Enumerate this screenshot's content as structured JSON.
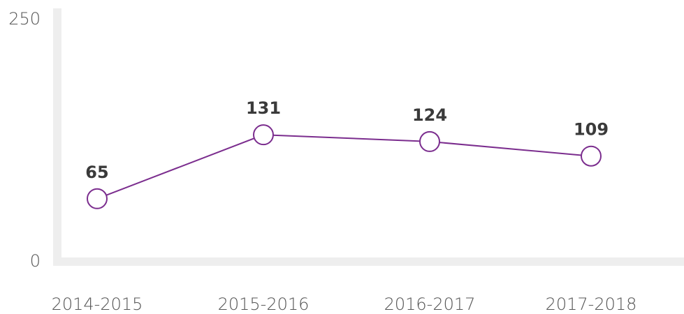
{
  "chart_data": {
    "type": "line",
    "categories": [
      "2014-2015",
      "2015-2016",
      "2016-2017",
      "2017-2018"
    ],
    "series": [
      {
        "color": "#7b2d8e",
        "values": [
          65,
          131,
          124,
          109
        ]
      }
    ],
    "ylim": [
      0,
      250
    ],
    "yticks": [
      0,
      250
    ]
  }
}
